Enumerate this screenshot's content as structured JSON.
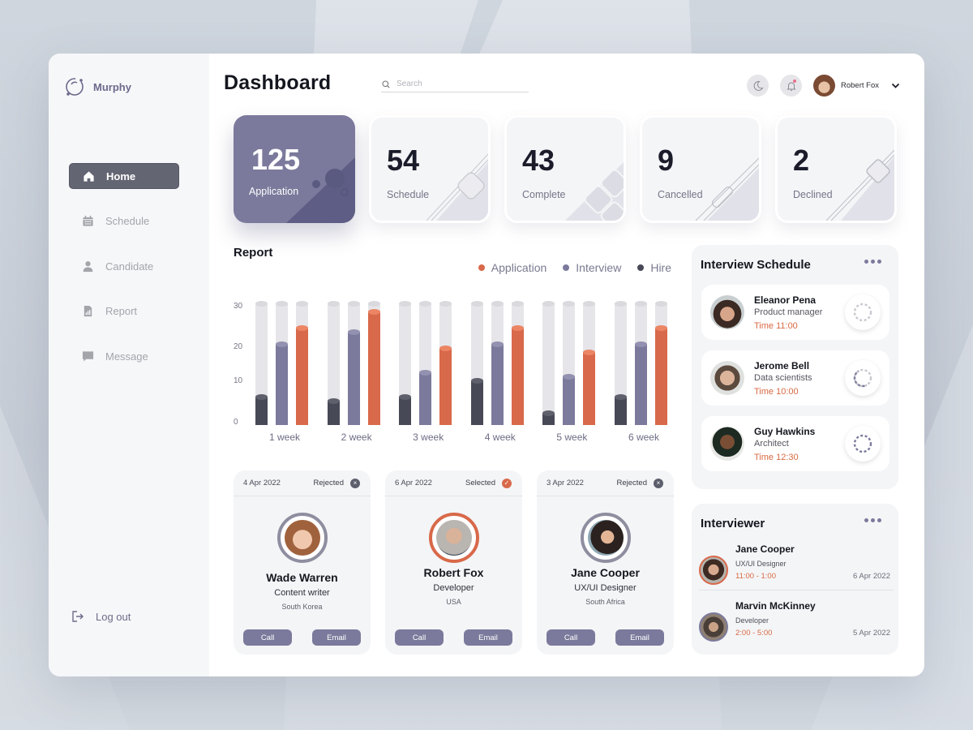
{
  "app": {
    "brand": "Murphy",
    "page_title": "Dashboard"
  },
  "colors": {
    "accent": "#7b7a9c",
    "application": "#d8694a",
    "interview": "#7b7a9c",
    "hire": "#474957",
    "time_text": "#d86a43",
    "nav_active": "#646573"
  },
  "sidebar": {
    "items": [
      {
        "label": "Home",
        "icon": "home-icon",
        "active": true
      },
      {
        "label": "Schedule",
        "icon": "calendar-icon",
        "active": false
      },
      {
        "label": "Candidate",
        "icon": "user-icon",
        "active": false
      },
      {
        "label": "Report",
        "icon": "report-icon",
        "active": false
      },
      {
        "label": "Message",
        "icon": "message-icon",
        "active": false
      }
    ],
    "logout_label": "Log out"
  },
  "header": {
    "search_placeholder": "Search",
    "user_name": "Robert Fox"
  },
  "stats": [
    {
      "value": "125",
      "label": "Application"
    },
    {
      "value": "54",
      "label": "Schedule"
    },
    {
      "value": "43",
      "label": "Complete"
    },
    {
      "value": "9",
      "label": "Cancelled"
    },
    {
      "value": "2",
      "label": "Declined"
    }
  ],
  "report": {
    "title": "Report",
    "legend": [
      "Application",
      "Interview",
      "Hire"
    ]
  },
  "chart_data": {
    "type": "bar",
    "title": "Report",
    "xlabel": "",
    "ylabel": "",
    "ylim": [
      0,
      30
    ],
    "yticks": [
      0,
      10,
      20,
      30
    ],
    "grid": false,
    "legend_position": "top-right",
    "categories": [
      "1 week",
      "2 week",
      "3 week",
      "4 week",
      "5 week",
      "6 week"
    ],
    "series": [
      {
        "name": "Hire",
        "color": "#474957",
        "values": [
          7,
          6,
          7,
          11,
          3,
          7
        ]
      },
      {
        "name": "Interview",
        "color": "#7b7a9c",
        "values": [
          20,
          23,
          13,
          20,
          12,
          20
        ]
      },
      {
        "name": "Application",
        "color": "#d8694a",
        "values": [
          24,
          28,
          19,
          24,
          18,
          24
        ]
      }
    ]
  },
  "candidates": [
    {
      "date": "4 Apr 2022",
      "status": "Rejected",
      "name": "Wade Warren",
      "role": "Content writer",
      "location": "South Korea",
      "call_label": "Call",
      "email_label": "Email"
    },
    {
      "date": "6 Apr 2022",
      "status": "Selected",
      "name": "Robert Fox",
      "role": "Developer",
      "location": "USA",
      "call_label": "Call",
      "email_label": "Email"
    },
    {
      "date": "3 Apr 2022",
      "status": "Rejected",
      "name": "Jane Cooper",
      "role": "UX/UI Designer",
      "location": "South Africa",
      "call_label": "Call",
      "email_label": "Email"
    }
  ],
  "interview_schedule": {
    "title": "Interview Schedule",
    "items": [
      {
        "name": "Eleanor Pena",
        "role": "Product manager",
        "time": "Time 11:00"
      },
      {
        "name": "Jerome Bell",
        "role": "Data scientists",
        "time": "Time 10:00"
      },
      {
        "name": "Guy Hawkins",
        "role": "Architect",
        "time": "Time 12:30"
      }
    ]
  },
  "interviewer": {
    "title": "Interviewer",
    "items": [
      {
        "name": "Jane Cooper",
        "role": "UX/UI Designer",
        "time": "11:00 - 1:00",
        "date": "6 Apr 2022"
      },
      {
        "name": "Marvin McKinney",
        "role": "Developer",
        "time": "2:00 - 5:00",
        "date": "5 Apr 2022"
      }
    ]
  }
}
